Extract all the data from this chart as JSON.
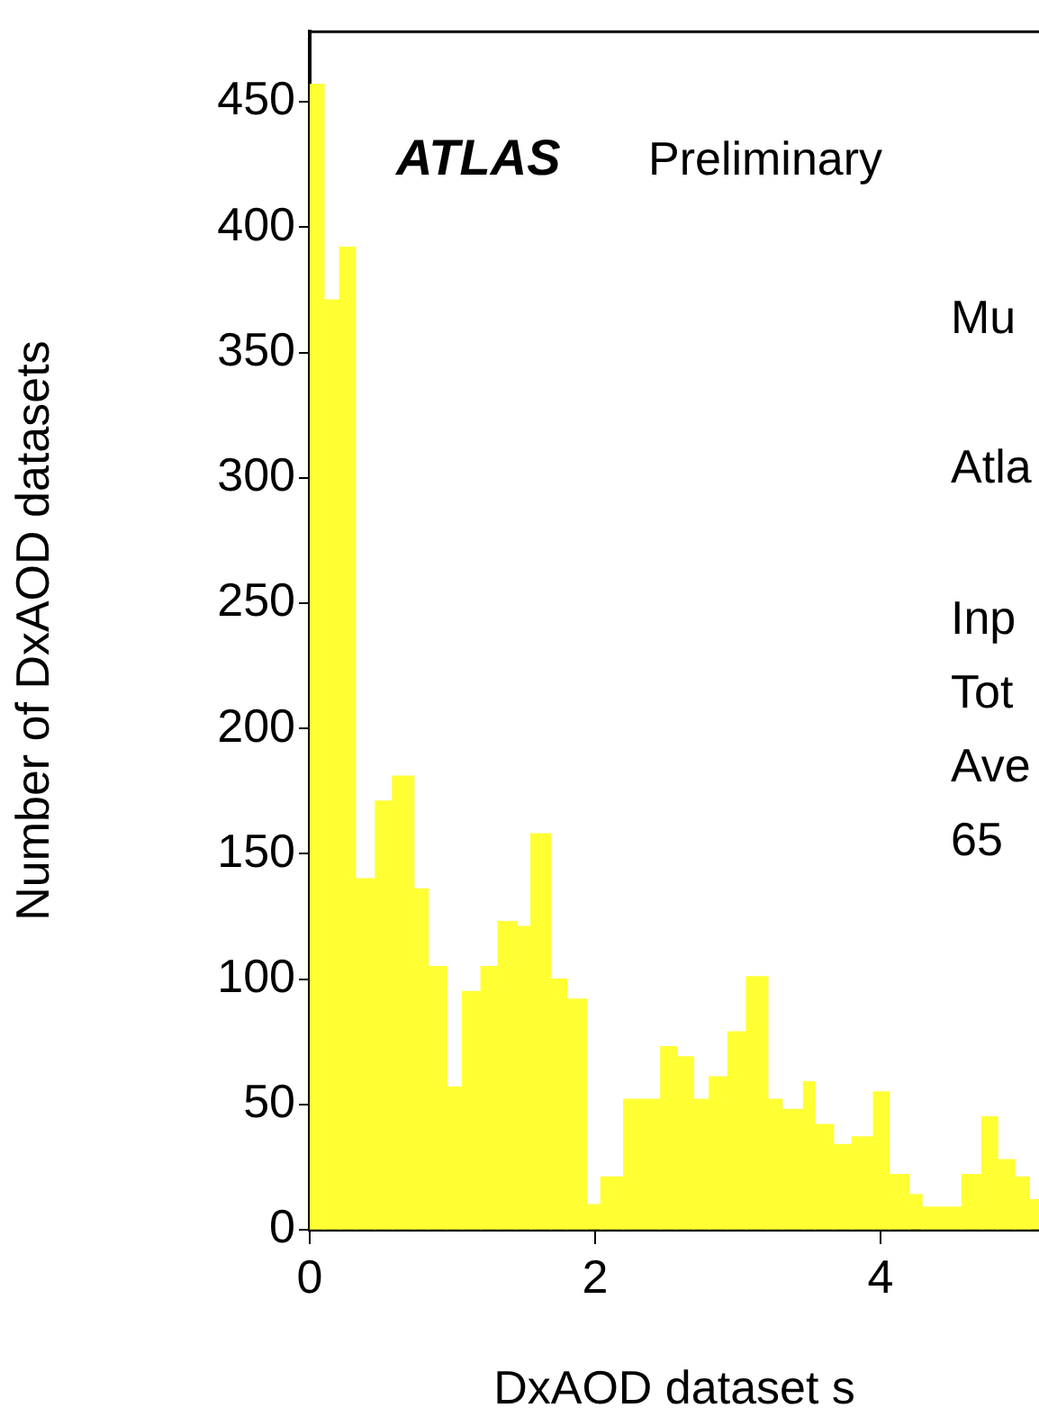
{
  "chart_data": {
    "type": "histogram",
    "xlabel": "DxAOD dataset s",
    "ylabel": "Number of DxAOD datasets",
    "annotations": [
      "ATLAS",
      "Preliminary",
      "Mu",
      "Atla",
      "Inp",
      "Tot",
      "Ave",
      "65"
    ],
    "bins": [
      0,
      0.1,
      0.21,
      0.32,
      0.46,
      0.58,
      0.73,
      0.83,
      0.96,
      1.07,
      1.2,
      1.32,
      1.45,
      1.55,
      1.69,
      1.8,
      1.94,
      2.04,
      2.2,
      2.46,
      2.57,
      2.69,
      2.8,
      2.93,
      3.06,
      3.21,
      3.31,
      3.46,
      3.54,
      3.67,
      3.8,
      3.95,
      4.06,
      4.2,
      4.29,
      4.57,
      4.71,
      4.82,
      4.94,
      5.04,
      5.11
    ],
    "values": [
      457,
      371,
      392,
      140,
      171,
      181,
      136,
      105,
      57,
      95,
      105,
      123,
      121,
      158,
      100,
      92,
      10,
      21,
      52,
      73,
      69,
      52,
      61,
      79,
      101,
      52,
      48,
      59,
      42,
      34,
      37,
      55,
      22,
      14,
      9,
      22,
      45,
      28,
      21,
      12
    ],
    "color": "#ffff33",
    "xlim": [
      0,
      5.11
    ],
    "xticks": [
      0,
      2,
      4
    ],
    "ylim": [
      0,
      478
    ],
    "yticks": [
      0,
      50,
      100,
      150,
      200,
      250,
      300,
      350,
      400,
      450
    ],
    "grid": false,
    "legend": false
  }
}
